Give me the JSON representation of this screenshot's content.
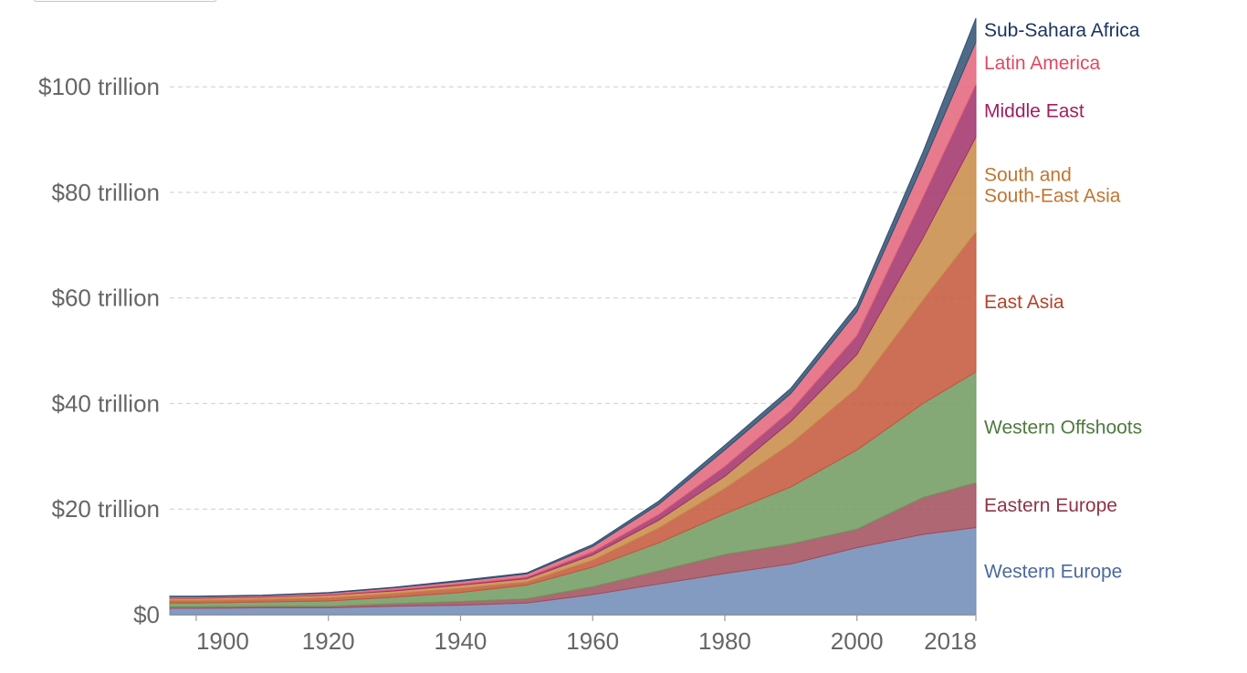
{
  "chart_data": {
    "type": "area",
    "stacked": true,
    "x": [
      1900,
      1910,
      1920,
      1930,
      1940,
      1950,
      1960,
      1970,
      1980,
      1990,
      2000,
      2010,
      2018
    ],
    "ylim": [
      0,
      113
    ],
    "xlim": [
      1896,
      2018
    ],
    "y_ticks": [
      0,
      20,
      40,
      60,
      80,
      100
    ],
    "y_tick_labels": [
      "$0",
      "$20 trillion",
      "$40 trillion",
      "$60 trillion",
      "$80 trillion",
      "$100 trillion"
    ],
    "x_ticks": [
      1900,
      1920,
      1940,
      1960,
      1980,
      2000,
      2018
    ],
    "x_tick_labels": [
      "1900",
      "1920",
      "1940",
      "1960",
      "1980",
      "2000",
      "2018"
    ],
    "grid": true,
    "legend": "right (inline labels)",
    "series": [
      {
        "name": "Western Europe",
        "color": "#6f89b6",
        "label_color": "#4c6a9c",
        "values": [
          1.2,
          1.3,
          1.3,
          1.6,
          1.8,
          2.2,
          3.8,
          5.8,
          7.8,
          9.6,
          12.7,
          15.2,
          16.5
        ]
      },
      {
        "name": "Eastern Europe",
        "color": "#a04c5b",
        "label_color": "#8e3446",
        "values": [
          0.3,
          0.3,
          0.3,
          0.5,
          0.7,
          0.8,
          1.5,
          2.5,
          3.6,
          3.8,
          3.5,
          7.0,
          8.5
        ]
      },
      {
        "name": "Western Offshoots",
        "color": "#6f9a5e",
        "label_color": "#4f7a3f",
        "values": [
          0.7,
          0.8,
          1.0,
          1.2,
          1.7,
          2.6,
          3.7,
          5.3,
          7.7,
          10.8,
          15.0,
          17.8,
          21.0
        ]
      },
      {
        "name": "East Asia",
        "color": "#c4553a",
        "label_color": "#b3432a",
        "values": [
          0.5,
          0.5,
          0.6,
          0.7,
          0.8,
          0.6,
          1.3,
          2.8,
          4.8,
          8.2,
          11.7,
          19.6,
          26.5
        ]
      },
      {
        "name": "South and South-East Asia",
        "color": "#c88a44",
        "label_color": "#c07530",
        "values": [
          0.4,
          0.4,
          0.5,
          0.5,
          0.6,
          0.6,
          1.0,
          1.5,
          2.3,
          4.2,
          6.4,
          11.8,
          18.0
        ]
      },
      {
        "name": "Middle East",
        "color": "#a1306a",
        "label_color": "#a0205f",
        "values": [
          0.1,
          0.1,
          0.1,
          0.2,
          0.2,
          0.3,
          0.6,
          1.1,
          1.9,
          2.1,
          3.6,
          7.7,
          10.0
        ]
      },
      {
        "name": "Latin America",
        "color": "#e36479",
        "label_color": "#e04860",
        "values": [
          0.2,
          0.2,
          0.3,
          0.4,
          0.5,
          0.6,
          1.0,
          1.9,
          3.1,
          3.2,
          4.5,
          6.2,
          8.0
        ]
      },
      {
        "name": "Sub-Sahara Africa",
        "color": "#2f5071",
        "label_color": "#1b3561",
        "values": [
          0.1,
          0.1,
          0.1,
          0.1,
          0.2,
          0.2,
          0.4,
          0.6,
          0.9,
          1.0,
          1.2,
          2.4,
          4.5
        ]
      }
    ]
  }
}
